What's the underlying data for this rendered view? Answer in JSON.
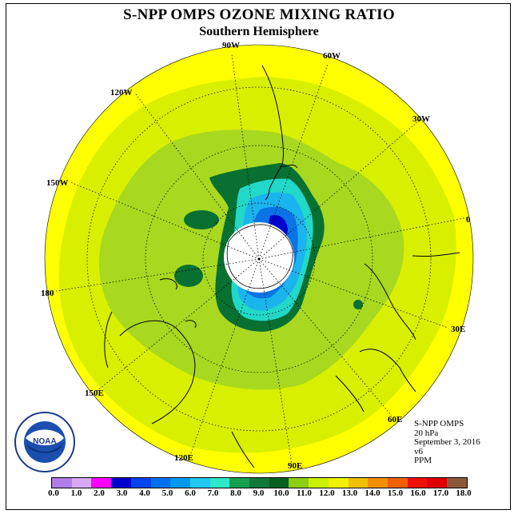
{
  "title": "S-NPP OMPS OZONE MIXING RATIO",
  "subtitle": "Southern Hemisphere",
  "longitude_labels": [
    "90W",
    "60W",
    "30W",
    "0",
    "30E",
    "60E",
    "90E",
    "120E",
    "150E",
    "180",
    "150W",
    "120W"
  ],
  "info": {
    "instrument": "S-NPP OMPS",
    "level": "20 hPa",
    "date": "September 3, 2016",
    "version": "v6",
    "units": "PPM"
  },
  "colorbar": {
    "labels": [
      "0.0",
      "1.0",
      "2.0",
      "3.0",
      "4.0",
      "5.0",
      "6.0",
      "7.0",
      "8.0",
      "9.0",
      "10.0",
      "11.0",
      "12.0",
      "13.0",
      "14.0",
      "15.0",
      "16.0",
      "17.0",
      "18.0"
    ],
    "colors": [
      "#b07ee6",
      "#d8a8f2",
      "#ff00ff",
      "#0000cc",
      "#0044ee",
      "#0070ee",
      "#0099ee",
      "#22c8f0",
      "#2ee8c8",
      "#14a050",
      "#107838",
      "#006020",
      "#8ed010",
      "#c8f000",
      "#f0f000",
      "#f0c000",
      "#f09000",
      "#f06000",
      "#f01000",
      "#e00000",
      "#8b5a3a"
    ],
    "min": 0,
    "max": 18
  },
  "logo_text": "NOAA",
  "colors": {
    "background_yellow": "#ffff00",
    "outer_lime": "#d8f000",
    "mid_green": "#a8d820",
    "dark_green": "#087030",
    "pole_cap": "#ffffff"
  }
}
